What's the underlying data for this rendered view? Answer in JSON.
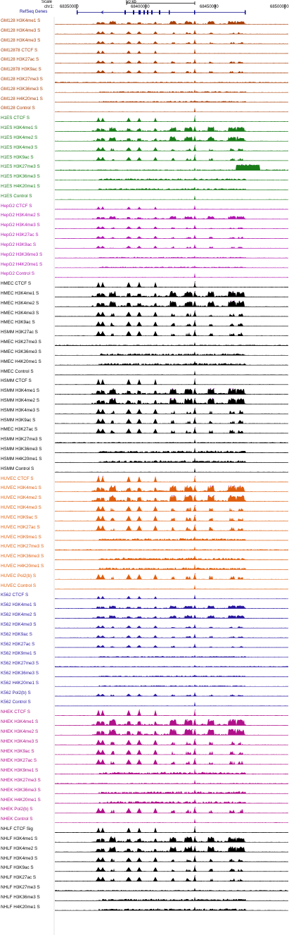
{
  "header": {
    "scale_label": "Scale",
    "chrom_label": "chr1:",
    "scale_bar_text": "50 kb",
    "positions": [
      "68350000",
      "68400000",
      "68450000",
      "68500000"
    ],
    "refseq_label": "RefSeq Genes"
  },
  "colors": {
    "GM12878": "#a8400a",
    "H1ES": "#1a7d1a",
    "HepG2": "#b018b0",
    "HMEC": "#000000",
    "HSMM": "#000000",
    "HUVEC": "#e06010",
    "K562": "#2a1aa0",
    "NHEK": "#b0108a",
    "NHLF": "#000000",
    "refseq": "#0a0a8a",
    "peak_highlight": "#a030c0"
  },
  "tracks": [
    {
      "label": "GM128 H3K4me1 S",
      "group": "GM12878"
    },
    {
      "label": "GM128 H3K4me3 S",
      "group": "GM12878"
    },
    {
      "label": "GM128 H3K4me3 S",
      "group": "GM12878"
    },
    {
      "label": "GM12878 CTCF S",
      "group": "GM12878"
    },
    {
      "label": "GM128 H3K27ac S",
      "group": "GM12878"
    },
    {
      "label": "GM12878 H3K9ac S",
      "group": "GM12878"
    },
    {
      "label": "GM128 H3K27me3 S",
      "group": "GM12878"
    },
    {
      "label": "GM128 H3K36me3 S",
      "group": "GM12878"
    },
    {
      "label": "GM128 H4K20me1 S",
      "group": "GM12878"
    },
    {
      "label": "GM128 Control S",
      "group": "GM12878"
    },
    {
      "label": "H1ES CTCF S",
      "group": "H1ES"
    },
    {
      "label": "H1ES H3K4me1 S",
      "group": "H1ES"
    },
    {
      "label": "H1ES H3K4me2 S",
      "group": "H1ES"
    },
    {
      "label": "H1ES H3K4me3 S",
      "group": "H1ES"
    },
    {
      "label": "H1ES H3K9ac S",
      "group": "H1ES"
    },
    {
      "label": "H1ES H3K27me3 S",
      "group": "H1ES"
    },
    {
      "label": "H1ES H3K36me3 S",
      "group": "H1ES"
    },
    {
      "label": "H1ES H4K20me1 S",
      "group": "H1ES"
    },
    {
      "label": "H1ES Control S",
      "group": "H1ES"
    },
    {
      "label": "HepG2 CTCF S",
      "group": "HepG2"
    },
    {
      "label": "HepG2 H3K4me2 S",
      "group": "HepG2"
    },
    {
      "label": "HepG2 H3K4me3 S",
      "group": "HepG2"
    },
    {
      "label": "HepG2 H3K27ac S",
      "group": "HepG2"
    },
    {
      "label": "HepG2 H3K9ac S",
      "group": "HepG2"
    },
    {
      "label": "HepG2 H3K36me3 S",
      "group": "HepG2"
    },
    {
      "label": "HepG2 H4K20me1 S",
      "group": "HepG2"
    },
    {
      "label": "HepG2 Control S",
      "group": "HepG2"
    },
    {
      "label": "HMEC CTCF S",
      "group": "HMEC"
    },
    {
      "label": "HMEC H3K4me1 S",
      "group": "HMEC"
    },
    {
      "label": "HMEC H3K4me2 S",
      "group": "HMEC"
    },
    {
      "label": "HMEC H3K4me3 S",
      "group": "HMEC"
    },
    {
      "label": "HMEC H3K9ac S",
      "group": "HMEC"
    },
    {
      "label": "HSMM H3K27ac S",
      "group": "HSMM"
    },
    {
      "label": "HMEC H3K27me3 S",
      "group": "HMEC"
    },
    {
      "label": "HMEC H3K36me3 S",
      "group": "HMEC"
    },
    {
      "label": "HMEC H4K20me1 S",
      "group": "HMEC"
    },
    {
      "label": "HMEC Control S",
      "group": "HMEC"
    },
    {
      "label": "HSMM CTCF S",
      "group": "HSMM"
    },
    {
      "label": "HSMM H3K4me1 S",
      "group": "HSMM"
    },
    {
      "label": "HSMM H3K4me2 S",
      "group": "HSMM"
    },
    {
      "label": "HSMM H3K4me3 S",
      "group": "HSMM"
    },
    {
      "label": "HSMM H3K9ac S",
      "group": "HSMM"
    },
    {
      "label": "HMEC H3K27ac S",
      "group": "HMEC"
    },
    {
      "label": "HSMM H3K27me3 S",
      "group": "HSMM"
    },
    {
      "label": "HSMM H3K36me3 S",
      "group": "HSMM"
    },
    {
      "label": "HSMM H4K20me1 S",
      "group": "HSMM"
    },
    {
      "label": "HSMM Control S",
      "group": "HSMM"
    },
    {
      "label": "HUVEC CTCF S",
      "group": "HUVEC"
    },
    {
      "label": "HUVEC H3K4me1 S",
      "group": "HUVEC"
    },
    {
      "label": "HUVEC H3K4me2 S",
      "group": "HUVEC"
    },
    {
      "label": "HUVEC H3K4me3 S",
      "group": "HUVEC"
    },
    {
      "label": "HUVEC H3K9ac S",
      "group": "HUVEC"
    },
    {
      "label": "HUVEC H3K27ac S",
      "group": "HUVEC"
    },
    {
      "label": "HUVEC H3K9me1 S",
      "group": "HUVEC"
    },
    {
      "label": "HUVEC H3K27me3 S",
      "group": "HUVEC"
    },
    {
      "label": "HUVEC H3K36me3 S",
      "group": "HUVEC"
    },
    {
      "label": "HUVEC H4K20me1 S",
      "group": "HUVEC"
    },
    {
      "label": "HUVEC Pol2(b) S",
      "group": "HUVEC"
    },
    {
      "label": "HUVEC Control S",
      "group": "HUVEC"
    },
    {
      "label": "K562 CTCF S",
      "group": "K562"
    },
    {
      "label": "K562 H3K4me1 S",
      "group": "K562"
    },
    {
      "label": "K562 H3K4me2 S",
      "group": "K562"
    },
    {
      "label": "K562 H3K4me3 S",
      "group": "K562"
    },
    {
      "label": "K562 H3K9ac S",
      "group": "K562"
    },
    {
      "label": "K562 H3K27ac S",
      "group": "K562"
    },
    {
      "label": "K562 H3K9me1 S",
      "group": "K562"
    },
    {
      "label": "K562 H3K27me3 S",
      "group": "K562"
    },
    {
      "label": "K562 H3K36me3 S",
      "group": "K562"
    },
    {
      "label": "K562 H4K20me1 S",
      "group": "K562"
    },
    {
      "label": "K562 Pol2(b) S",
      "group": "K562"
    },
    {
      "label": "K562 Control S",
      "group": "K562"
    },
    {
      "label": "NHEK CTCF S",
      "group": "NHEK"
    },
    {
      "label": "NHEK H3K4me1 S",
      "group": "NHEK"
    },
    {
      "label": "NHEK H3K4me2 S",
      "group": "NHEK"
    },
    {
      "label": "NHEK H3K4me3 S",
      "group": "NHEK"
    },
    {
      "label": "NHEK H3K9ac S",
      "group": "NHEK"
    },
    {
      "label": "NHEK H3K27ac S",
      "group": "NHEK"
    },
    {
      "label": "NHEK H3K9me1 S",
      "group": "NHEK"
    },
    {
      "label": "NHEK H3K27me3 S",
      "group": "NHEK"
    },
    {
      "label": "NHEK H3K36me3 S",
      "group": "NHEK"
    },
    {
      "label": "NHEK H4K20me1 S",
      "group": "NHEK"
    },
    {
      "label": "NHEK Pol2(b) S",
      "group": "NHEK"
    },
    {
      "label": "NHEK Control S",
      "group": "NHEK"
    },
    {
      "label": "NHLF CTCF Sig",
      "group": "NHLF"
    },
    {
      "label": "NHLF H3K4me1 S",
      "group": "NHLF"
    },
    {
      "label": "NHLF H3K4me2 S",
      "group": "NHLF"
    },
    {
      "label": "NHLF H3K4me3 S",
      "group": "NHLF"
    },
    {
      "label": "NHLF H3K9ac S",
      "group": "NHLF"
    },
    {
      "label": "NHLF H3K27ac S",
      "group": "NHLF"
    },
    {
      "label": "NHLF H3K27me3 S",
      "group": "NHLF"
    },
    {
      "label": "NHLF H3K36me3 S",
      "group": "NHLF"
    },
    {
      "label": "NHLF H4K20me1 S",
      "group": "NHLF"
    }
  ]
}
